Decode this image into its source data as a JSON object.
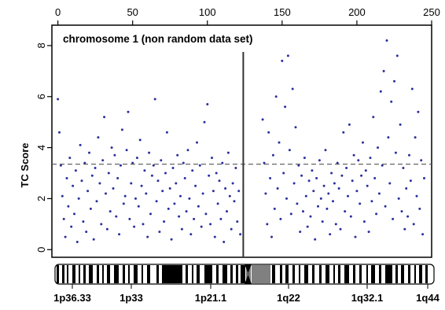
{
  "chart_data": {
    "type": "scatter",
    "title": "chromosome 1 (non random data set)",
    "xlabel": "",
    "ylabel": "TC Score",
    "xlim": [
      -4,
      250
    ],
    "ylim": [
      -0.3,
      8.8
    ],
    "x_ticks": [
      0,
      50,
      100,
      150,
      200,
      250
    ],
    "y_ticks": [
      0,
      2,
      4,
      6,
      8
    ],
    "axis_x_position": "top",
    "grid": false,
    "reference_line": {
      "style": "dashed",
      "y": 3.35
    },
    "divider_line": {
      "style": "solid",
      "x": 124
    },
    "point_color": "#2b2f9e",
    "series": [
      {
        "values": [
          [
            0,
            5.9
          ],
          [
            1,
            4.6
          ],
          [
            2,
            3.3
          ],
          [
            3,
            2.1
          ],
          [
            4,
            1.2
          ],
          [
            5,
            0.5
          ],
          [
            6,
            2.8
          ],
          [
            7,
            1.7
          ],
          [
            8,
            3.6
          ],
          [
            9,
            0.9
          ],
          [
            10,
            2.5
          ],
          [
            11,
            1.4
          ],
          [
            12,
            3.1
          ],
          [
            13,
            0.3
          ],
          [
            14,
            2.0
          ],
          [
            15,
            4.1
          ],
          [
            16,
            2.7
          ],
          [
            17,
            1.1
          ],
          [
            18,
            3.4
          ],
          [
            19,
            0.7
          ],
          [
            20,
            2.3
          ],
          [
            21,
            3.8
          ],
          [
            22,
            1.6
          ],
          [
            23,
            2.9
          ],
          [
            24,
            0.4
          ],
          [
            25,
            3.2
          ],
          [
            26,
            1.9
          ],
          [
            27,
            4.4
          ],
          [
            28,
            2.6
          ],
          [
            29,
            1.0
          ],
          [
            30,
            3.5
          ],
          [
            31,
            5.2
          ],
          [
            32,
            2.2
          ],
          [
            33,
            0.8
          ],
          [
            34,
            3.0
          ],
          [
            35,
            1.5
          ],
          [
            36,
            4.0
          ],
          [
            37,
            2.4
          ],
          [
            38,
            3.7
          ],
          [
            39,
            1.3
          ],
          [
            40,
            2.8
          ],
          [
            41,
            0.6
          ],
          [
            42,
            3.3
          ],
          [
            43,
            4.7
          ],
          [
            44,
            1.8
          ],
          [
            45,
            2.1
          ],
          [
            46,
            3.9
          ],
          [
            47,
            5.4
          ],
          [
            48,
            1.2
          ],
          [
            49,
            2.6
          ],
          [
            50,
            3.4
          ],
          [
            51,
            0.9
          ],
          [
            52,
            2.0
          ],
          [
            53,
            3.6
          ],
          [
            54,
            1.7
          ],
          [
            55,
            4.3
          ],
          [
            56,
            2.5
          ],
          [
            57,
            1.0
          ],
          [
            58,
            3.1
          ],
          [
            59,
            2.2
          ],
          [
            60,
            0.5
          ],
          [
            61,
            3.8
          ],
          [
            62,
            1.4
          ],
          [
            63,
            2.9
          ],
          [
            64,
            3.3
          ],
          [
            65,
            5.9
          ],
          [
            66,
            1.9
          ],
          [
            67,
            2.7
          ],
          [
            68,
            0.7
          ],
          [
            69,
            3.5
          ],
          [
            70,
            2.3
          ],
          [
            71,
            1.1
          ],
          [
            72,
            3.0
          ],
          [
            73,
            4.6
          ],
          [
            74,
            1.6
          ],
          [
            75,
            2.4
          ],
          [
            76,
            0.4
          ],
          [
            77,
            3.2
          ],
          [
            78,
            1.8
          ],
          [
            79,
            2.6
          ],
          [
            80,
            3.7
          ],
          [
            81,
            1.3
          ],
          [
            82,
            2.1
          ],
          [
            83,
            0.8
          ],
          [
            84,
            3.4
          ],
          [
            85,
            2.8
          ],
          [
            86,
            1.5
          ],
          [
            87,
            3.9
          ],
          [
            88,
            2.0
          ],
          [
            89,
            0.6
          ],
          [
            90,
            3.1
          ],
          [
            91,
            1.2
          ],
          [
            92,
            2.5
          ],
          [
            93,
            4.2
          ],
          [
            94,
            1.7
          ],
          [
            95,
            3.3
          ],
          [
            96,
            0.9
          ],
          [
            97,
            2.2
          ],
          [
            98,
            5.0
          ],
          [
            99,
            1.4
          ],
          [
            100,
            5.7
          ],
          [
            101,
            2.9
          ],
          [
            102,
            1.0
          ],
          [
            103,
            3.6
          ],
          [
            104,
            2.3
          ],
          [
            105,
            0.5
          ],
          [
            106,
            3.0
          ],
          [
            107,
            1.8
          ],
          [
            108,
            2.7
          ],
          [
            109,
            1.2
          ],
          [
            110,
            3.4
          ],
          [
            111,
            0.3
          ],
          [
            112,
            2.4
          ],
          [
            113,
            1.5
          ],
          [
            114,
            3.8
          ],
          [
            115,
            2.1
          ],
          [
            116,
            0.8
          ],
          [
            117,
            2.6
          ],
          [
            118,
            1.9
          ],
          [
            119,
            3.2
          ],
          [
            120,
            1.1
          ],
          [
            121,
            2.3
          ],
          [
            122,
            0.6
          ],
          [
            137,
            5.1
          ],
          [
            138,
            3.4
          ],
          [
            139,
            2.2
          ],
          [
            140,
            1.0
          ],
          [
            141,
            4.6
          ],
          [
            142,
            2.8
          ],
          [
            143,
            0.5
          ],
          [
            144,
            3.7
          ],
          [
            145,
            1.6
          ],
          [
            146,
            6.0
          ],
          [
            147,
            2.4
          ],
          [
            148,
            4.2
          ],
          [
            149,
            1.2
          ],
          [
            150,
            7.4
          ],
          [
            151,
            3.0
          ],
          [
            152,
            5.6
          ],
          [
            153,
            2.0
          ],
          [
            154,
            7.6
          ],
          [
            155,
            3.9
          ],
          [
            156,
            1.4
          ],
          [
            157,
            6.3
          ],
          [
            158,
            2.6
          ],
          [
            159,
            4.8
          ],
          [
            160,
            1.8
          ],
          [
            161,
            3.3
          ],
          [
            162,
            0.7
          ],
          [
            163,
            2.9
          ],
          [
            164,
            1.5
          ],
          [
            165,
            3.6
          ],
          [
            166,
            2.1
          ],
          [
            167,
            0.9
          ],
          [
            168,
            2.7
          ],
          [
            169,
            1.3
          ],
          [
            170,
            3.1
          ],
          [
            171,
            2.3
          ],
          [
            172,
            0.4
          ],
          [
            173,
            2.8
          ],
          [
            174,
            1.7
          ],
          [
            175,
            3.5
          ],
          [
            176,
            2.0
          ],
          [
            177,
            1.1
          ],
          [
            178,
            2.5
          ],
          [
            179,
            3.9
          ],
          [
            180,
            1.6
          ],
          [
            181,
            2.2
          ],
          [
            182,
            0.6
          ],
          [
            183,
            3.0
          ],
          [
            184,
            1.9
          ],
          [
            185,
            2.6
          ],
          [
            186,
            1.0
          ],
          [
            187,
            3.4
          ],
          [
            188,
            2.4
          ],
          [
            189,
            0.8
          ],
          [
            190,
            2.9
          ],
          [
            191,
            4.6
          ],
          [
            192,
            1.5
          ],
          [
            193,
            3.2
          ],
          [
            194,
            2.1
          ],
          [
            195,
            4.9
          ],
          [
            196,
            1.3
          ],
          [
            197,
            2.7
          ],
          [
            198,
            3.7
          ],
          [
            199,
            0.5
          ],
          [
            200,
            2.3
          ],
          [
            201,
            3.5
          ],
          [
            202,
            1.8
          ],
          [
            203,
            2.9
          ],
          [
            204,
            4.2
          ],
          [
            205,
            1.1
          ],
          [
            206,
            3.1
          ],
          [
            207,
            2.5
          ],
          [
            208,
            0.7
          ],
          [
            209,
            3.6
          ],
          [
            210,
            1.9
          ],
          [
            211,
            5.2
          ],
          [
            212,
            2.8
          ],
          [
            213,
            1.4
          ],
          [
            214,
            4.0
          ],
          [
            215,
            2.2
          ],
          [
            216,
            6.2
          ],
          [
            217,
            3.3
          ],
          [
            218,
            7.0
          ],
          [
            219,
            1.7
          ],
          [
            220,
            8.2
          ],
          [
            221,
            4.4
          ],
          [
            222,
            2.6
          ],
          [
            223,
            5.8
          ],
          [
            224,
            1.2
          ],
          [
            225,
            6.6
          ],
          [
            226,
            3.8
          ],
          [
            227,
            7.6
          ],
          [
            228,
            2.0
          ],
          [
            229,
            4.9
          ],
          [
            230,
            1.5
          ],
          [
            231,
            3.2
          ],
          [
            232,
            0.8
          ],
          [
            233,
            2.4
          ],
          [
            234,
            1.3
          ],
          [
            235,
            3.7
          ],
          [
            236,
            2.7
          ],
          [
            237,
            6.3
          ],
          [
            238,
            1.0
          ],
          [
            239,
            4.4
          ],
          [
            240,
            2.1
          ],
          [
            241,
            5.4
          ],
          [
            242,
            1.6
          ],
          [
            243,
            3.5
          ],
          [
            244,
            0.6
          ],
          [
            245,
            2.8
          ]
        ]
      }
    ],
    "chromosome_band_labels": [
      "1p36.33",
      "1p33",
      "1p21.1",
      "1q22",
      "1q32.1",
      "1q44"
    ]
  }
}
